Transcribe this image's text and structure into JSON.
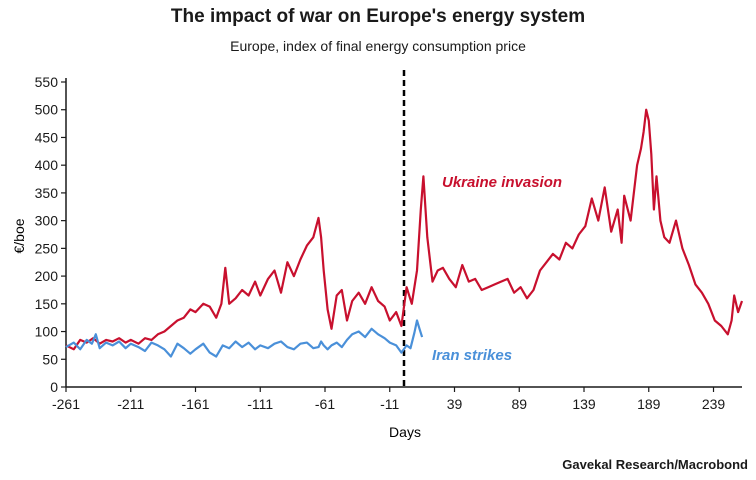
{
  "title": "The impact of war on Europe's energy system",
  "subtitle": "Europe, index of final energy consumption price",
  "source": "Gavekal Research/Macrobond",
  "chart_data": {
    "type": "line",
    "title": "The impact of war on Europe's energy system",
    "subtitle": "Europe, index of final energy consumption price",
    "xlabel": "Days",
    "ylabel": "€/boe",
    "xlim": [
      -261,
      261
    ],
    "ylim": [
      0,
      550
    ],
    "xticks": [
      -261,
      -211,
      -161,
      -111,
      -61,
      -11,
      39,
      89,
      139,
      189,
      239
    ],
    "yticks": [
      0,
      50,
      100,
      150,
      200,
      250,
      300,
      350,
      400,
      450,
      500,
      550
    ],
    "grid": false,
    "event_marker": {
      "x": 0,
      "style": "dashed vertical line"
    },
    "series": [
      {
        "name": "Ukraine invasion",
        "color": "#c8102e",
        "x": [
          -261,
          -255,
          -250,
          -245,
          -240,
          -235,
          -230,
          -225,
          -220,
          -215,
          -211,
          -205,
          -200,
          -195,
          -190,
          -185,
          -180,
          -175,
          -170,
          -165,
          -161,
          -155,
          -150,
          -145,
          -141,
          -138,
          -135,
          -130,
          -125,
          -120,
          -115,
          -111,
          -105,
          -100,
          -95,
          -90,
          -85,
          -80,
          -75,
          -70,
          -66,
          -64,
          -62,
          -59,
          -56,
          -52,
          -48,
          -44,
          -40,
          -35,
          -30,
          -25,
          -20,
          -15,
          -11,
          -6,
          -2,
          2,
          6,
          10,
          13,
          15,
          18,
          22,
          26,
          30,
          35,
          40,
          45,
          50,
          55,
          60,
          65,
          70,
          75,
          80,
          85,
          90,
          95,
          100,
          105,
          110,
          115,
          120,
          125,
          130,
          135,
          140,
          145,
          150,
          155,
          160,
          165,
          168,
          170,
          175,
          180,
          183,
          185,
          187,
          189,
          191,
          193,
          195,
          198,
          201,
          205,
          210,
          215,
          220,
          225,
          230,
          235,
          240,
          245,
          250,
          253,
          255,
          258,
          261
        ],
        "values": [
          75,
          68,
          85,
          80,
          88,
          78,
          85,
          82,
          88,
          80,
          85,
          78,
          88,
          85,
          95,
          100,
          110,
          120,
          125,
          140,
          135,
          150,
          145,
          125,
          150,
          215,
          150,
          160,
          175,
          165,
          190,
          165,
          195,
          210,
          170,
          225,
          200,
          230,
          255,
          270,
          305,
          270,
          210,
          140,
          105,
          165,
          175,
          120,
          155,
          170,
          150,
          180,
          155,
          145,
          120,
          135,
          110,
          180,
          150,
          210,
          320,
          380,
          270,
          190,
          210,
          215,
          195,
          180,
          220,
          190,
          195,
          175,
          180,
          185,
          190,
          195,
          170,
          180,
          160,
          175,
          210,
          225,
          240,
          230,
          260,
          250,
          275,
          290,
          340,
          300,
          360,
          280,
          320,
          260,
          345,
          300,
          400,
          430,
          460,
          500,
          480,
          420,
          320,
          380,
          300,
          270,
          260,
          300,
          250,
          220,
          185,
          170,
          150,
          120,
          110,
          95,
          120,
          165,
          135,
          155
        ]
      },
      {
        "name": "Iran strikes",
        "color": "#4a90d9",
        "x": [
          -261,
          -255,
          -250,
          -245,
          -241,
          -238,
          -235,
          -230,
          -225,
          -220,
          -215,
          -211,
          -205,
          -200,
          -195,
          -190,
          -185,
          -180,
          -175,
          -170,
          -165,
          -161,
          -155,
          -150,
          -145,
          -140,
          -135,
          -130,
          -125,
          -120,
          -115,
          -111,
          -105,
          -100,
          -95,
          -90,
          -85,
          -80,
          -75,
          -70,
          -66,
          -64,
          -62,
          -59,
          -56,
          -52,
          -48,
          -44,
          -40,
          -35,
          -30,
          -25,
          -20,
          -15,
          -11,
          -6,
          -2,
          2,
          5,
          8,
          10,
          12,
          14
        ],
        "values": [
          72,
          80,
          68,
          85,
          78,
          95,
          70,
          80,
          75,
          82,
          70,
          78,
          72,
          65,
          80,
          75,
          68,
          55,
          78,
          70,
          60,
          68,
          78,
          62,
          55,
          75,
          70,
          82,
          72,
          80,
          68,
          75,
          70,
          78,
          82,
          72,
          68,
          78,
          80,
          70,
          72,
          82,
          75,
          68,
          75,
          80,
          72,
          85,
          95,
          100,
          90,
          105,
          95,
          88,
          80,
          75,
          62,
          75,
          70,
          98,
          120,
          105,
          90
        ]
      }
    ]
  }
}
